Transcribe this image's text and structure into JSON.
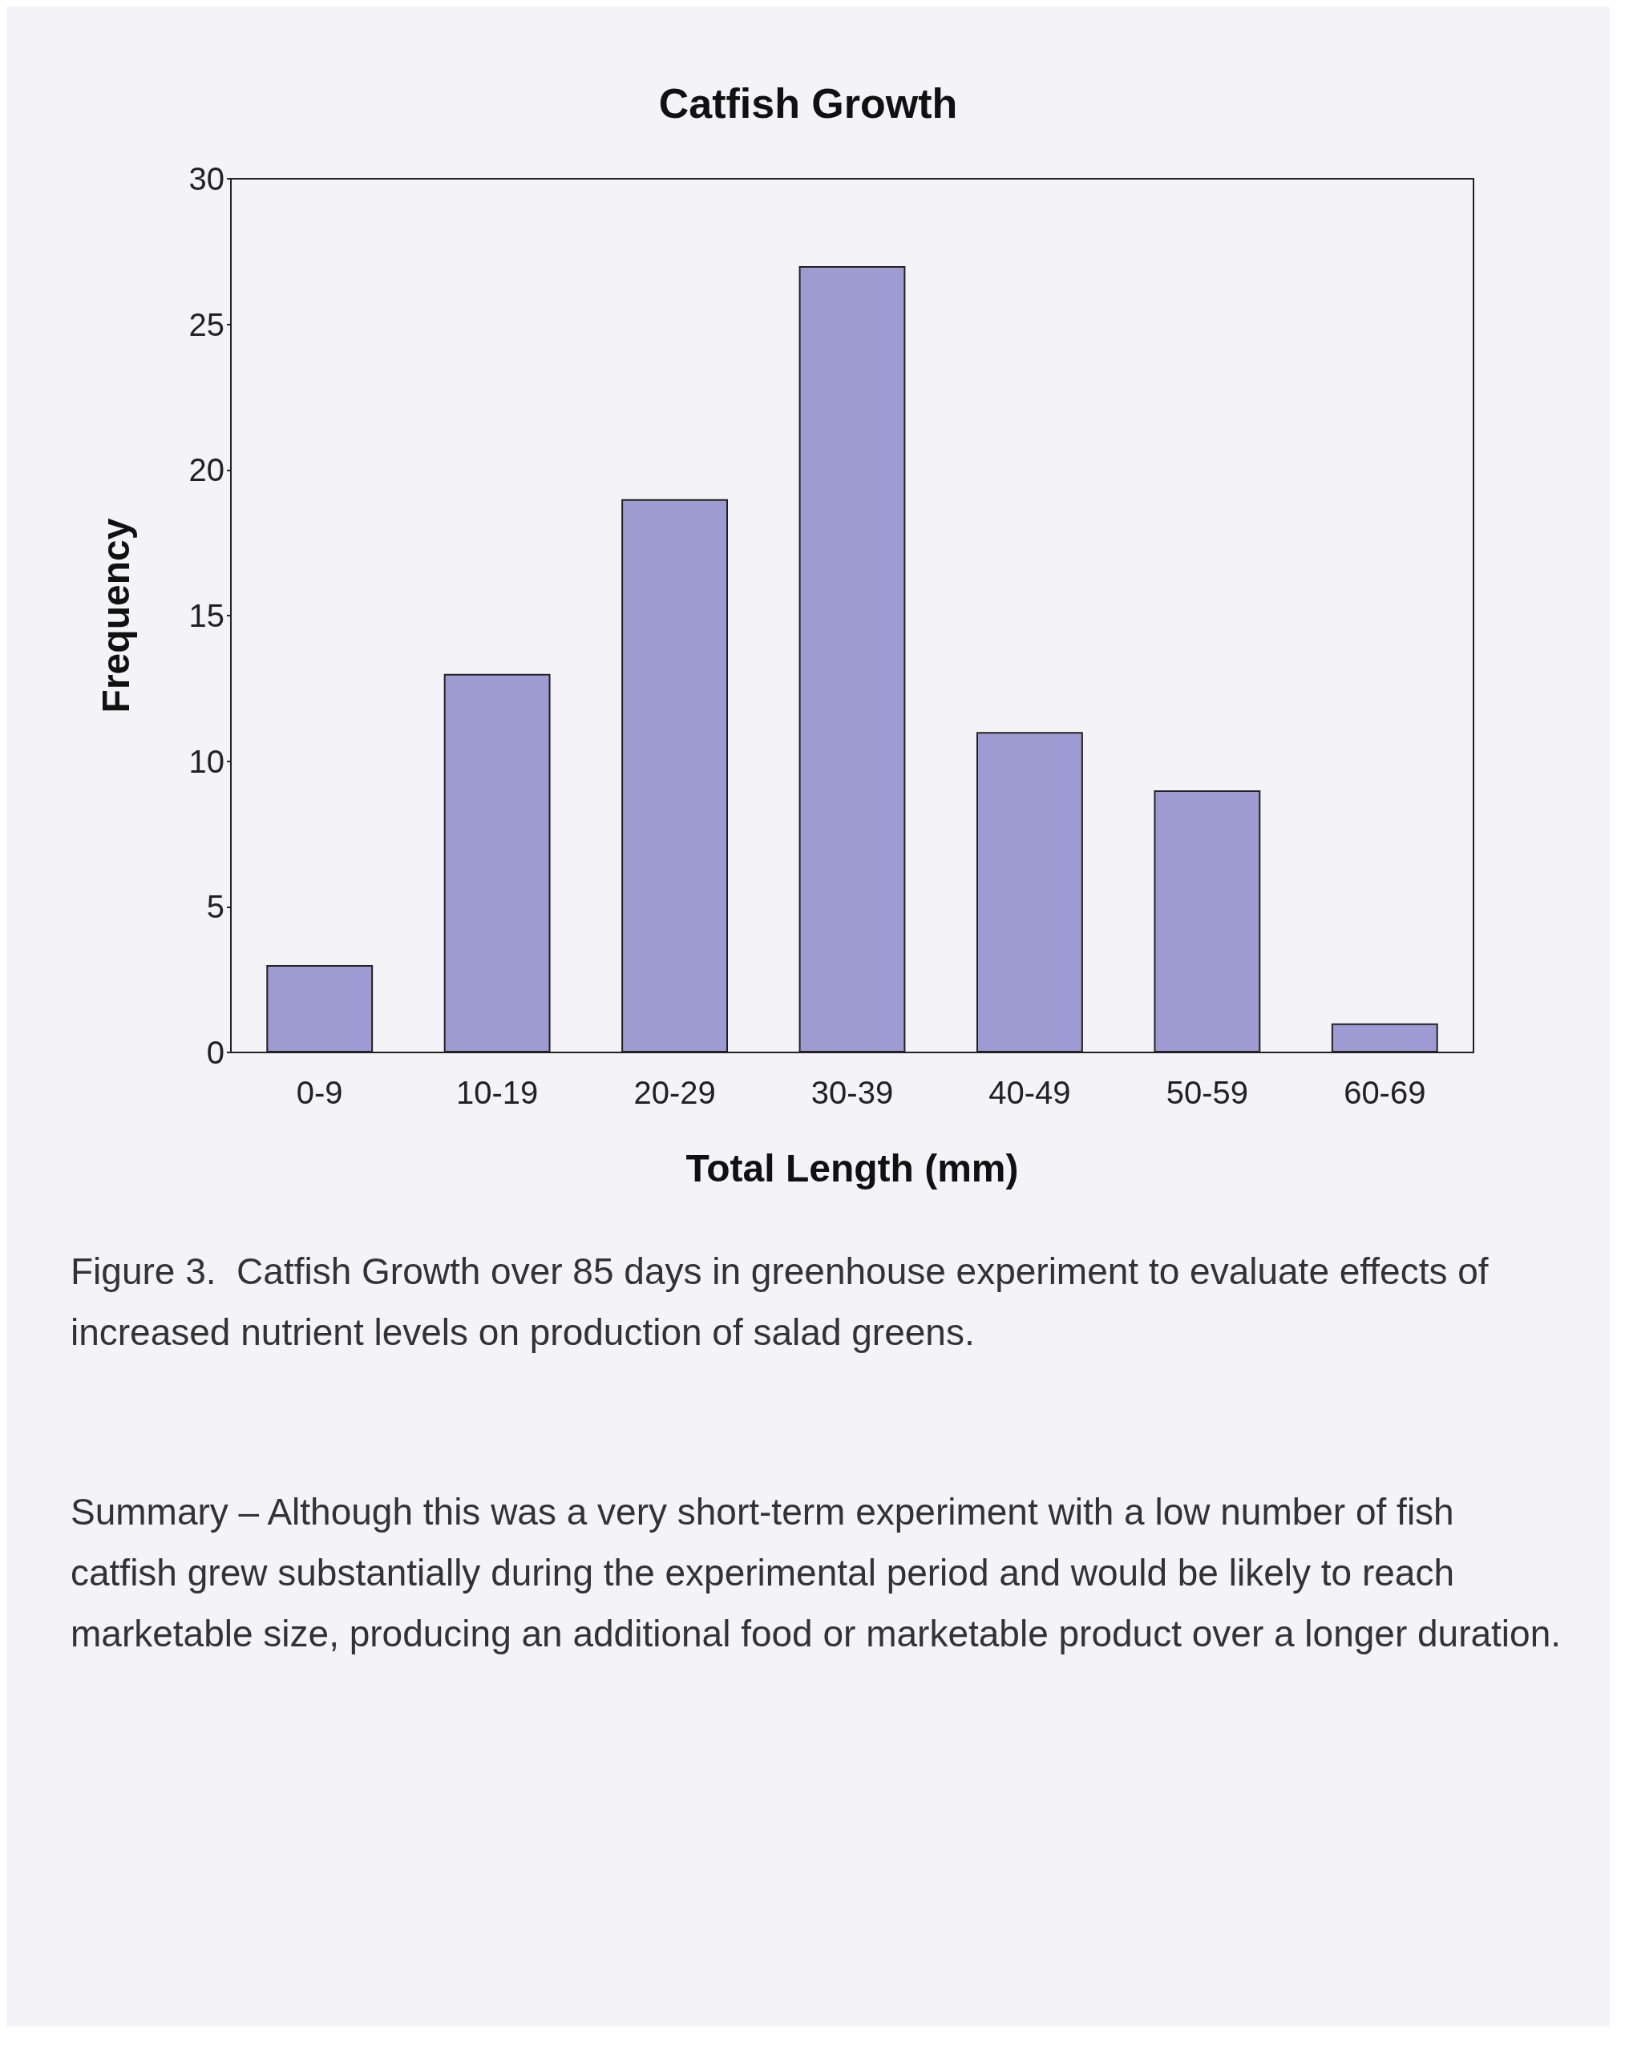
{
  "chart_data": {
    "type": "bar",
    "title": "Catfish Growth",
    "xlabel": "Total Length (mm)",
    "ylabel": "Frequency",
    "categories": [
      "0-9",
      "10-19",
      "20-29",
      "30-39",
      "40-49",
      "50-59",
      "60-69"
    ],
    "values": [
      3,
      13,
      19,
      27,
      11,
      9,
      1
    ],
    "color": "#9d9bd2",
    "ylim": [
      0,
      30
    ],
    "yticks": [
      0,
      5,
      10,
      15,
      20,
      25,
      30
    ],
    "grid": false,
    "annotations": [
      "Figure 3.  Catfish Growth over 85 days in greenhouse experiment to evaluate effects of increased nutrient levels on production of salad greens.",
      "Summary – Although this was a very short-term experiment with a low number of fish catfish grew substantially during the experimental period and would be likely to reach marketable size, producing an additional food or marketable product over a longer duration."
    ]
  }
}
